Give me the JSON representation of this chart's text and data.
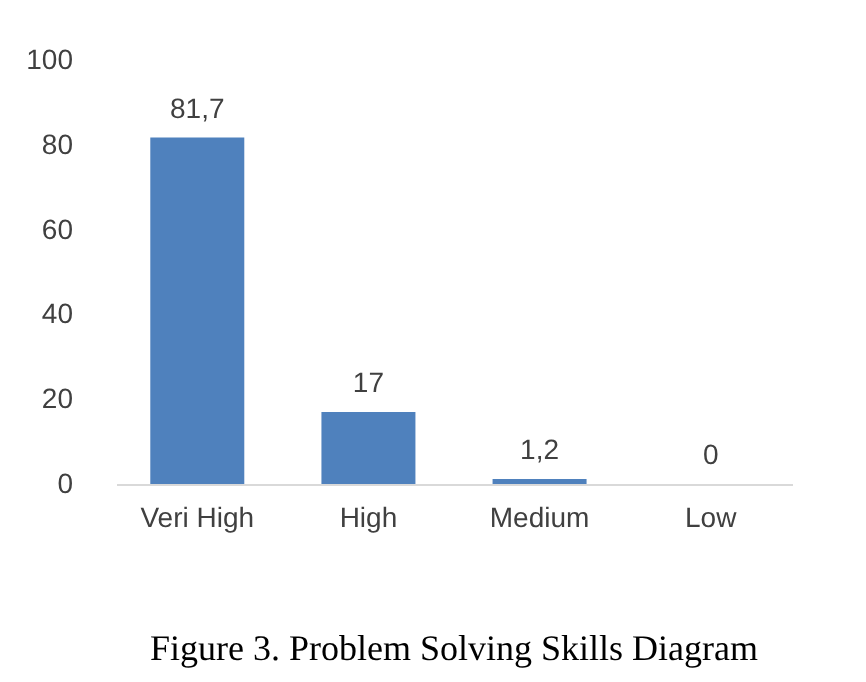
{
  "chart_data": {
    "type": "bar",
    "categories": [
      "Veri High",
      "High",
      "Medium",
      "Low"
    ],
    "values": [
      81.7,
      17,
      1.2,
      0
    ],
    "value_labels": [
      "81,7",
      "17",
      "1,2",
      "0"
    ],
    "color": "#4f81bd",
    "ylim": [
      0,
      100
    ],
    "yticks": [
      0,
      20,
      40,
      60,
      80,
      100
    ],
    "grid": false,
    "annotations": [
      "Figure 3.   Problem Solving Skills Diagram"
    ]
  }
}
